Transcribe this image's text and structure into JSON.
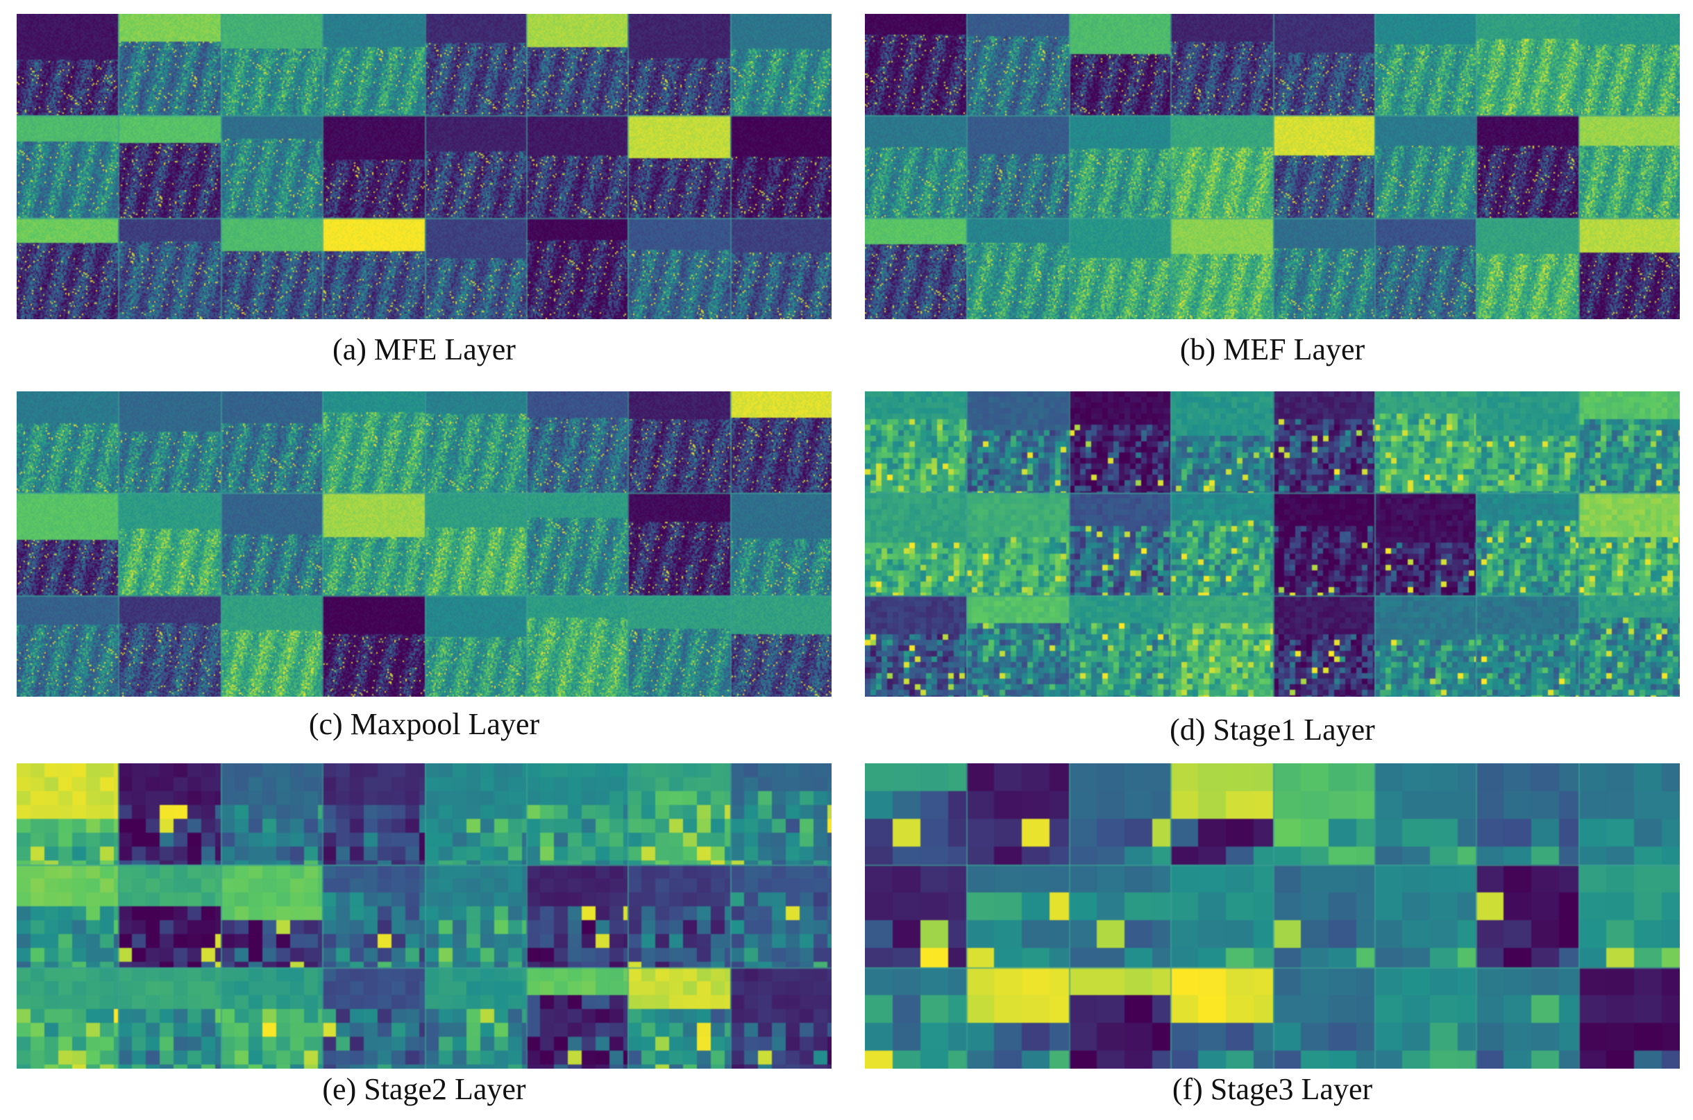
{
  "figure": {
    "panels": [
      {
        "id": "a",
        "caption": "(a) MFE Layer",
        "rows": 3,
        "cols": 8,
        "texture": "fine",
        "dark_bias": 0.75
      },
      {
        "id": "b",
        "caption": "(b) MEF Layer",
        "rows": 3,
        "cols": 8,
        "texture": "fine",
        "dark_bias": 0.35
      },
      {
        "id": "c",
        "caption": "(c) Maxpool Layer",
        "rows": 3,
        "cols": 8,
        "texture": "fine",
        "dark_bias": 0.3
      },
      {
        "id": "d",
        "caption": "(d) Stage1 Layer",
        "rows": 3,
        "cols": 8,
        "texture": "medium",
        "dark_bias": 0.35
      },
      {
        "id": "e",
        "caption": "(e) Stage2 Layer",
        "rows": 3,
        "cols": 8,
        "texture": "coarse",
        "dark_bias": 0.3
      },
      {
        "id": "f",
        "caption": "(f) Stage3 Layer",
        "rows": 3,
        "cols": 8,
        "texture": "blocky",
        "dark_bias": 0.35
      }
    ],
    "colormap": [
      "#440154",
      "#3b528b",
      "#21918c",
      "#5ec962",
      "#fde725"
    ]
  }
}
